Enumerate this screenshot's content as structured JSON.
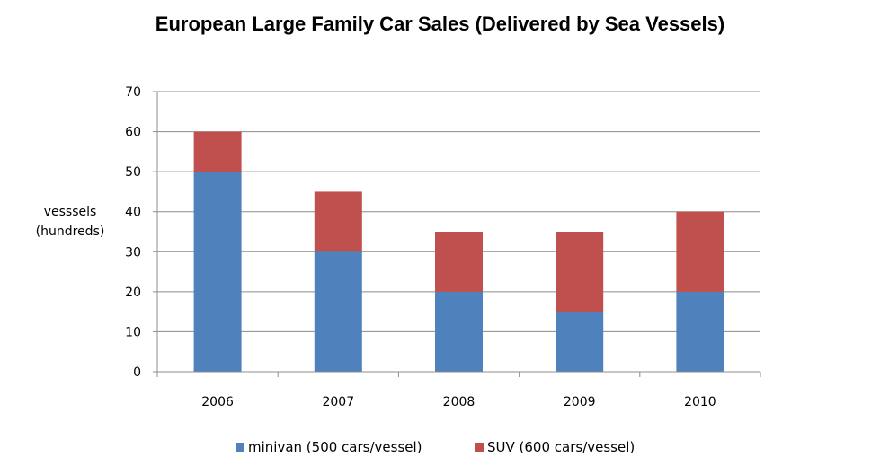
{
  "chart_data": {
    "type": "bar",
    "stacked": true,
    "title": "European Large Family Car Sales (Delivered by Sea Vessels)",
    "xlabel": "",
    "ylabel": [
      "vesssels",
      "(hundreds)"
    ],
    "categories": [
      "2006",
      "2007",
      "2008",
      "2009",
      "2010"
    ],
    "series": [
      {
        "name": "minivan (500 cars/vessel)",
        "color": "#4F81BD",
        "values": [
          50,
          30,
          20,
          15,
          20
        ]
      },
      {
        "name": "SUV (600 cars/vessel)",
        "color": "#C0504D",
        "values": [
          10,
          15,
          15,
          20,
          20
        ]
      }
    ],
    "ylim": [
      0,
      70
    ],
    "yticks": [
      "0",
      "10",
      "20",
      "30",
      "40",
      "50",
      "60",
      "70"
    ],
    "grid": true,
    "legend": "bottom"
  }
}
